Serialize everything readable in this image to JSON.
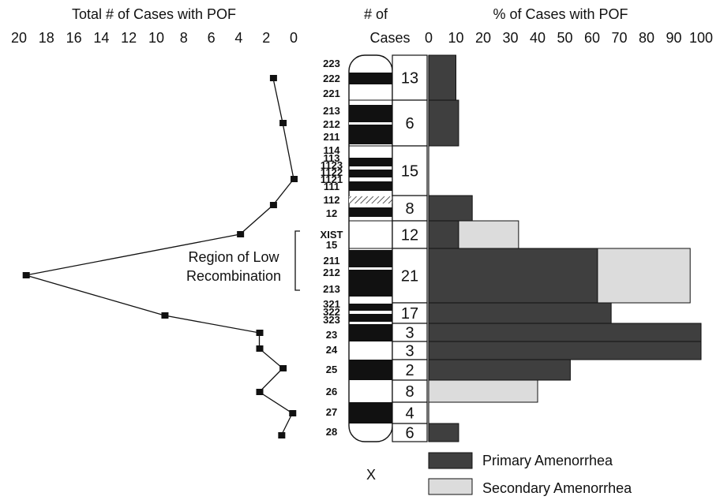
{
  "chart_data": [
    {
      "type": "line",
      "title": "Total # of Cases with POF",
      "x_ticks": [
        "20",
        "18",
        "16",
        "14",
        "12",
        "10",
        "8",
        "6",
        "4",
        "2",
        "0"
      ],
      "xlim": [
        20,
        0
      ],
      "points": [
        {
          "band": "222",
          "value": 1.5
        },
        {
          "band": "212",
          "value": 0.8
        },
        {
          "band": "1122",
          "value": 0
        },
        {
          "band": "12",
          "value": 1.5
        },
        {
          "band": "XIST",
          "value": 3.9
        },
        {
          "band": "212",
          "value": 19.5
        },
        {
          "band": "323",
          "value": 9.4
        },
        {
          "band": "23",
          "value": 2.5
        },
        {
          "band": "24",
          "value": 2.5
        },
        {
          "band": "25",
          "value": 0.8
        },
        {
          "band": "26",
          "value": 2.5
        },
        {
          "band": "27",
          "value": 0.1
        },
        {
          "band": "28",
          "value": 0.9
        }
      ],
      "annotation": [
        "Region of Low",
        "Recombination"
      ]
    },
    {
      "type": "table",
      "title_lines": [
        "# of",
        "Cases"
      ],
      "chromosome_label": "X",
      "band_labels": [
        "223",
        "222",
        "221",
        "213",
        "212",
        "211",
        "114",
        "113",
        "1123",
        "1122",
        "1121",
        "111",
        "112",
        "12",
        "XIST",
        "15",
        "211",
        "212",
        "213",
        "321",
        "322",
        "323",
        "23",
        "24",
        "25",
        "26",
        "27",
        "28"
      ],
      "cases": [
        "13",
        "6",
        "15",
        "8",
        "12",
        "21",
        "17",
        "3",
        "3",
        "2",
        "8",
        "4",
        "6"
      ]
    },
    {
      "type": "bar",
      "title": "% of Cases with POF",
      "x_ticks": [
        "0",
        "10",
        "20",
        "30",
        "40",
        "50",
        "60",
        "70",
        "80",
        "90",
        "100"
      ],
      "xlim": [
        0,
        100
      ],
      "categories": [
        "13",
        "6",
        "15",
        "8",
        "12",
        "21",
        "17",
        "3",
        "3",
        "2",
        "8",
        "4",
        "6"
      ],
      "series": [
        {
          "name": "Primary Amenorrhea",
          "values": [
            10,
            11,
            0,
            16,
            11,
            62,
            67,
            100,
            100,
            52,
            0,
            0,
            11
          ]
        },
        {
          "name": "Secondary Amenorrhea",
          "values": [
            0,
            0,
            0,
            0,
            22,
            34,
            0,
            0,
            0,
            0,
            40,
            0,
            0
          ]
        }
      ],
      "colors": {
        "Primary Amenorrhea": "#3f3f3f",
        "Secondary Amenorrhea": "#dcdcdc"
      },
      "legend": "bottom-right"
    }
  ]
}
